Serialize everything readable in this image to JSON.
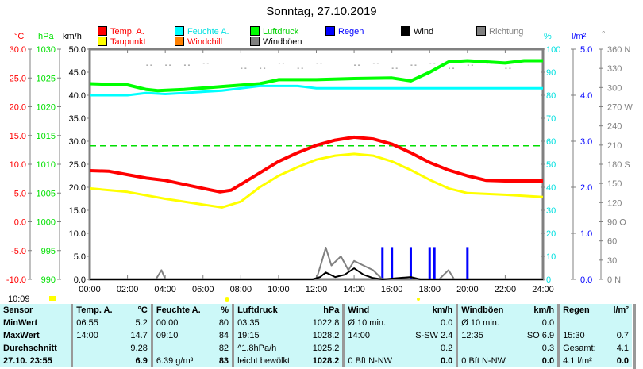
{
  "title": "Sonntag, 27.10.2019",
  "legend": [
    {
      "label": "Temp. A.",
      "color": "#ff0000",
      "text_color": "#ff0000"
    },
    {
      "label": "Taupunkt",
      "color": "#ffff00",
      "text_color": "#ff0000"
    },
    {
      "label": "Feuchte A.",
      "color": "#00ffff",
      "text_color": "#00e0e0"
    },
    {
      "label": "Windchill",
      "color": "#ff8000",
      "text_color": "#ff0000"
    },
    {
      "label": "Luftdruck",
      "color": "#00ff00",
      "text_color": "#00d000"
    },
    {
      "label": "Windböen",
      "color": "#808080",
      "text_color": "#000000"
    },
    {
      "label": "Regen",
      "color": "#0000ff",
      "text_color": "#0000ff"
    },
    {
      "label": "Wind",
      "color": "#000000",
      "text_color": "#000000"
    },
    {
      "label": "Richtung",
      "color": "#808080",
      "text_color": "#808080"
    }
  ],
  "units": {
    "temp": "°C",
    "pressure": "hPa",
    "wind": "km/h",
    "humidity": "%",
    "rain": "l/m²",
    "direction": "°"
  },
  "current_time": "10:09",
  "chart_data": {
    "type": "line",
    "title": "Sonntag, 27.10.2019",
    "x_range_hours": [
      0,
      24
    ],
    "x_ticks": [
      "00:00",
      "02:00",
      "04:00",
      "06:00",
      "08:00",
      "10:00",
      "12:00",
      "14:00",
      "16:00",
      "18:00",
      "20:00",
      "22:00",
      "24:00"
    ],
    "axes": {
      "temp": {
        "range": [
          -10,
          30
        ],
        "ticks": [
          "30.0",
          "25.0",
          "20.0",
          "15.0",
          "10.0",
          "5.0",
          "0.0",
          "-5.0",
          "-10.0"
        ]
      },
      "pressure": {
        "range": [
          990,
          1030
        ],
        "ticks": [
          "1030",
          "1025",
          "1020",
          "1015",
          "1010",
          "1005",
          "1000",
          "995",
          "990"
        ]
      },
      "wind": {
        "range": [
          0,
          50
        ],
        "ticks": [
          "50.0",
          "45.0",
          "40.0",
          "35.0",
          "30.0",
          "25.0",
          "20.0",
          "15.0",
          "10.0",
          "5.0",
          "0.0"
        ]
      },
      "humidity": {
        "range": [
          0,
          100
        ],
        "ticks": [
          "100",
          "90",
          "80",
          "70",
          "60",
          "50",
          "40",
          "30",
          "20",
          "10",
          "0"
        ]
      },
      "rain": {
        "range": [
          0,
          5
        ],
        "ticks": [
          "5.0",
          "4.0",
          "3.0",
          "2.0",
          "1.0",
          "0.0"
        ]
      },
      "direction": {
        "range": [
          0,
          360
        ],
        "ticks": [
          "360 N",
          "330",
          "300",
          "270 W",
          "240",
          "210",
          "180 S",
          "150",
          "120",
          "90  O",
          "60",
          "30",
          "0   N"
        ]
      }
    },
    "series": [
      {
        "name": "Temp. A.",
        "axis": "temp",
        "color": "#ff0000",
        "width": 4,
        "points": [
          [
            0,
            8.9
          ],
          [
            1,
            8.8
          ],
          [
            2,
            8.2
          ],
          [
            3,
            7.6
          ],
          [
            4,
            7.2
          ],
          [
            5,
            6.5
          ],
          [
            6,
            5.8
          ],
          [
            6.9,
            5.2
          ],
          [
            7.5,
            5.5
          ],
          [
            8,
            6.5
          ],
          [
            9,
            8.5
          ],
          [
            10,
            10.5
          ],
          [
            11,
            12
          ],
          [
            12,
            13.3
          ],
          [
            13,
            14.2
          ],
          [
            14,
            14.7
          ],
          [
            15,
            14.4
          ],
          [
            16,
            13.5
          ],
          [
            17,
            12
          ],
          [
            18,
            10.3
          ],
          [
            19,
            9
          ],
          [
            20,
            8
          ],
          [
            21,
            7.2
          ],
          [
            22,
            7.1
          ],
          [
            24,
            7.1
          ]
        ]
      },
      {
        "name": "Taupunkt",
        "axis": "temp",
        "color": "#ffff00",
        "width": 3,
        "points": [
          [
            0,
            5.8
          ],
          [
            2,
            5.2
          ],
          [
            3,
            4.6
          ],
          [
            4,
            4
          ],
          [
            5,
            3.5
          ],
          [
            6,
            3
          ],
          [
            7,
            2.5
          ],
          [
            8,
            3.5
          ],
          [
            9,
            6
          ],
          [
            10,
            8
          ],
          [
            11,
            9.5
          ],
          [
            12,
            10.8
          ],
          [
            13,
            11.5
          ],
          [
            14,
            11.8
          ],
          [
            15,
            11.5
          ],
          [
            16,
            10.5
          ],
          [
            17,
            9
          ],
          [
            18,
            7.3
          ],
          [
            19,
            5.8
          ],
          [
            20,
            5
          ],
          [
            22,
            4.7
          ],
          [
            24,
            4.3
          ]
        ]
      },
      {
        "name": "Luftdruck",
        "axis": "pressure",
        "color": "#00ff00",
        "width": 4,
        "points": [
          [
            0,
            1024
          ],
          [
            2,
            1023.8
          ],
          [
            3,
            1023
          ],
          [
            3.6,
            1022.8
          ],
          [
            5,
            1023
          ],
          [
            7,
            1023.5
          ],
          [
            9,
            1024
          ],
          [
            10,
            1024.7
          ],
          [
            12,
            1024.7
          ],
          [
            14,
            1024.9
          ],
          [
            16,
            1025
          ],
          [
            17,
            1024.5
          ],
          [
            18,
            1026
          ],
          [
            19,
            1027.8
          ],
          [
            20,
            1028
          ],
          [
            22,
            1027.6
          ],
          [
            23,
            1028
          ],
          [
            24,
            1028
          ]
        ]
      },
      {
        "name": "Feuchte A.",
        "axis": "humidity",
        "color": "#00ffff",
        "width": 3,
        "points": [
          [
            0,
            80
          ],
          [
            2,
            80
          ],
          [
            3,
            81
          ],
          [
            4,
            80.5
          ],
          [
            5,
            81
          ],
          [
            7,
            82
          ],
          [
            9,
            84
          ],
          [
            11,
            84
          ],
          [
            12,
            83
          ],
          [
            18,
            83
          ],
          [
            24,
            83
          ]
        ]
      },
      {
        "name": "Windböen",
        "axis": "wind",
        "color": "#808080",
        "width": 2,
        "points": [
          [
            0,
            0
          ],
          [
            3.5,
            0
          ],
          [
            3.8,
            2
          ],
          [
            4,
            0
          ],
          [
            12,
            0
          ],
          [
            12.3,
            4
          ],
          [
            12.5,
            6.9
          ],
          [
            12.8,
            3
          ],
          [
            13.3,
            5
          ],
          [
            13.7,
            2
          ],
          [
            14,
            4
          ],
          [
            14.5,
            3
          ],
          [
            15,
            2
          ],
          [
            15.5,
            0
          ],
          [
            18.5,
            0
          ],
          [
            19,
            2
          ],
          [
            19.3,
            0
          ],
          [
            24,
            0
          ]
        ]
      },
      {
        "name": "Wind",
        "axis": "wind",
        "color": "#000000",
        "width": 2,
        "points": [
          [
            0,
            0
          ],
          [
            11.8,
            0
          ],
          [
            12.2,
            0.5
          ],
          [
            12.5,
            1.5
          ],
          [
            13,
            0.5
          ],
          [
            13.5,
            1
          ],
          [
            14,
            2.4
          ],
          [
            14.5,
            1
          ],
          [
            15,
            0.3
          ],
          [
            15.5,
            0
          ],
          [
            17,
            0.5
          ],
          [
            17.5,
            0
          ],
          [
            24,
            0
          ]
        ]
      }
    ],
    "rain_bars": [
      [
        15.5,
        0.7
      ],
      [
        16,
        0.7
      ],
      [
        17,
        0.7
      ],
      [
        18,
        0.7
      ],
      [
        18.25,
        0.7
      ],
      [
        20,
        0.7
      ]
    ],
    "direction_points": [
      [
        3,
        335
      ],
      [
        4,
        335
      ],
      [
        5,
        335
      ],
      [
        6,
        338
      ],
      [
        8,
        330
      ],
      [
        9,
        330
      ],
      [
        10,
        338
      ],
      [
        11,
        330
      ],
      [
        12,
        338
      ],
      [
        14,
        335
      ],
      [
        15,
        338
      ],
      [
        16,
        330
      ],
      [
        17,
        335
      ],
      [
        18,
        338
      ],
      [
        19,
        330
      ],
      [
        20,
        335
      ],
      [
        21,
        338
      ],
      [
        22,
        330
      ]
    ],
    "reference_line": {
      "axis": "humidity",
      "value": 58,
      "color": "#00dd00"
    }
  },
  "table": {
    "headers": [
      {
        "label": "Sensor"
      },
      {
        "label": "Temp. A.",
        "unit": "°C"
      },
      {
        "label": "Feuchte A.",
        "unit": "%"
      },
      {
        "label": "Luftdruck",
        "unit": "hPa"
      },
      {
        "label": "Wind",
        "unit": "km/h"
      },
      {
        "label": "Windböen",
        "unit": "km/h"
      },
      {
        "label": "Regen",
        "unit": "l/m²"
      }
    ],
    "rows": [
      {
        "label": "MinWert",
        "cells": [
          [
            "06:55",
            "5.2"
          ],
          [
            "00:00",
            "80"
          ],
          [
            "03:35",
            "1022.8"
          ],
          [
            "Ø 10 min.",
            "0.0"
          ],
          [
            "Ø 10 min.",
            "0.0"
          ],
          [
            "",
            ""
          ]
        ]
      },
      {
        "label": "MaxWert",
        "cells": [
          [
            "14:00",
            "14.7"
          ],
          [
            "09:10",
            "84"
          ],
          [
            "19:15",
            "1028.2"
          ],
          [
            "14:00",
            "S-SW 2.4"
          ],
          [
            "12:35",
            "SO 6.9"
          ],
          [
            "15:30",
            "0.7"
          ]
        ]
      },
      {
        "label": "Durchschnitt",
        "cells": [
          [
            "",
            "9.28"
          ],
          [
            "",
            "82"
          ],
          [
            "^1.8hPa/h",
            "1025.2"
          ],
          [
            "",
            "0.2"
          ],
          [
            "",
            "0.3"
          ],
          [
            "Gesamt:",
            "4.1"
          ]
        ]
      },
      {
        "label": "27.10. 23:55",
        "cells": [
          [
            "",
            "6.9"
          ],
          [
            "6.39 g/m³",
            "83"
          ],
          [
            "leicht bewölkt",
            "1028.2"
          ],
          [
            "0 Bft N-NW",
            "0.0"
          ],
          [
            "0 Bft N-NW",
            "0.0"
          ],
          [
            "4.1 l/m²",
            "0.0"
          ]
        ]
      }
    ]
  }
}
